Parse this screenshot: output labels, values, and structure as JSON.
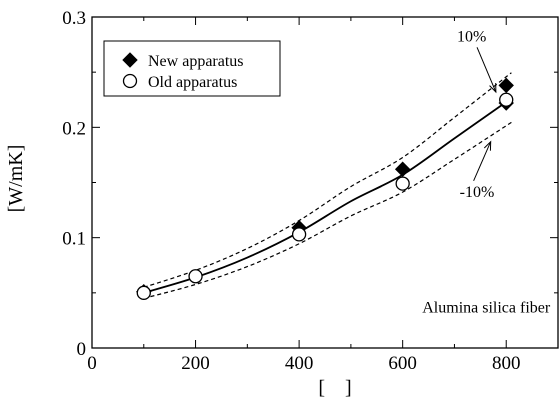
{
  "chart_data": {
    "type": "scatter",
    "xlabel": "[    ]",
    "ylabel": "[W/mK]",
    "xlim": [
      0,
      900
    ],
    "ylim": [
      0,
      0.3
    ],
    "xticks": [
      0,
      200,
      400,
      600,
      800
    ],
    "yticks": [
      0,
      0.1,
      0.2,
      0.3
    ],
    "xtick_labels": [
      "0",
      "200",
      "400",
      "600",
      "800"
    ],
    "ytick_labels": [
      "0",
      "0.1",
      "0.2",
      "0.3"
    ],
    "legend": {
      "position": "top-left",
      "entries": [
        "New apparatus",
        "Old apparatus"
      ]
    },
    "series": [
      {
        "name": "New apparatus",
        "marker": "filled-diamond",
        "points": [
          {
            "x": 100,
            "y": 0.051
          },
          {
            "x": 400,
            "y": 0.109
          },
          {
            "x": 600,
            "y": 0.162
          },
          {
            "x": 800,
            "y": 0.238
          },
          {
            "x": 800,
            "y": 0.222
          }
        ]
      },
      {
        "name": "Old apparatus",
        "marker": "open-circle",
        "points": [
          {
            "x": 100,
            "y": 0.05
          },
          {
            "x": 200,
            "y": 0.065
          },
          {
            "x": 400,
            "y": 0.103
          },
          {
            "x": 600,
            "y": 0.149
          },
          {
            "x": 800,
            "y": 0.225
          }
        ]
      }
    ],
    "fit_curve": {
      "style": "solid",
      "points": [
        [
          100,
          0.05
        ],
        [
          200,
          0.064
        ],
        [
          300,
          0.082
        ],
        [
          400,
          0.105
        ],
        [
          500,
          0.133
        ],
        [
          600,
          0.157
        ],
        [
          700,
          0.19
        ],
        [
          800,
          0.223
        ]
      ]
    },
    "band_upper": {
      "style": "dashed",
      "label": "10%",
      "points": [
        [
          100,
          0.055
        ],
        [
          200,
          0.0704
        ],
        [
          300,
          0.0902
        ],
        [
          400,
          0.1155
        ],
        [
          500,
          0.1463
        ],
        [
          600,
          0.1727
        ],
        [
          700,
          0.209
        ],
        [
          810,
          0.2495
        ]
      ]
    },
    "band_lower": {
      "style": "dashed",
      "label": "-10%",
      "points": [
        [
          100,
          0.045
        ],
        [
          200,
          0.0576
        ],
        [
          300,
          0.0738
        ],
        [
          400,
          0.0945
        ],
        [
          500,
          0.1197
        ],
        [
          600,
          0.1413
        ],
        [
          700,
          0.171
        ],
        [
          810,
          0.2045
        ]
      ]
    },
    "annotations": [
      {
        "text": "10%",
        "x": 705,
        "y": 0.278,
        "arrow_to": [
          780,
          0.232
        ]
      },
      {
        "text": "-10%",
        "x": 710,
        "y": 0.137,
        "arrow_to": [
          770,
          0.187
        ]
      },
      {
        "text": "Alumina silica fiber",
        "x": 885,
        "y": 0.032
      }
    ],
    "colors": {
      "ink": "#000000",
      "background": "#ffffff"
    }
  }
}
